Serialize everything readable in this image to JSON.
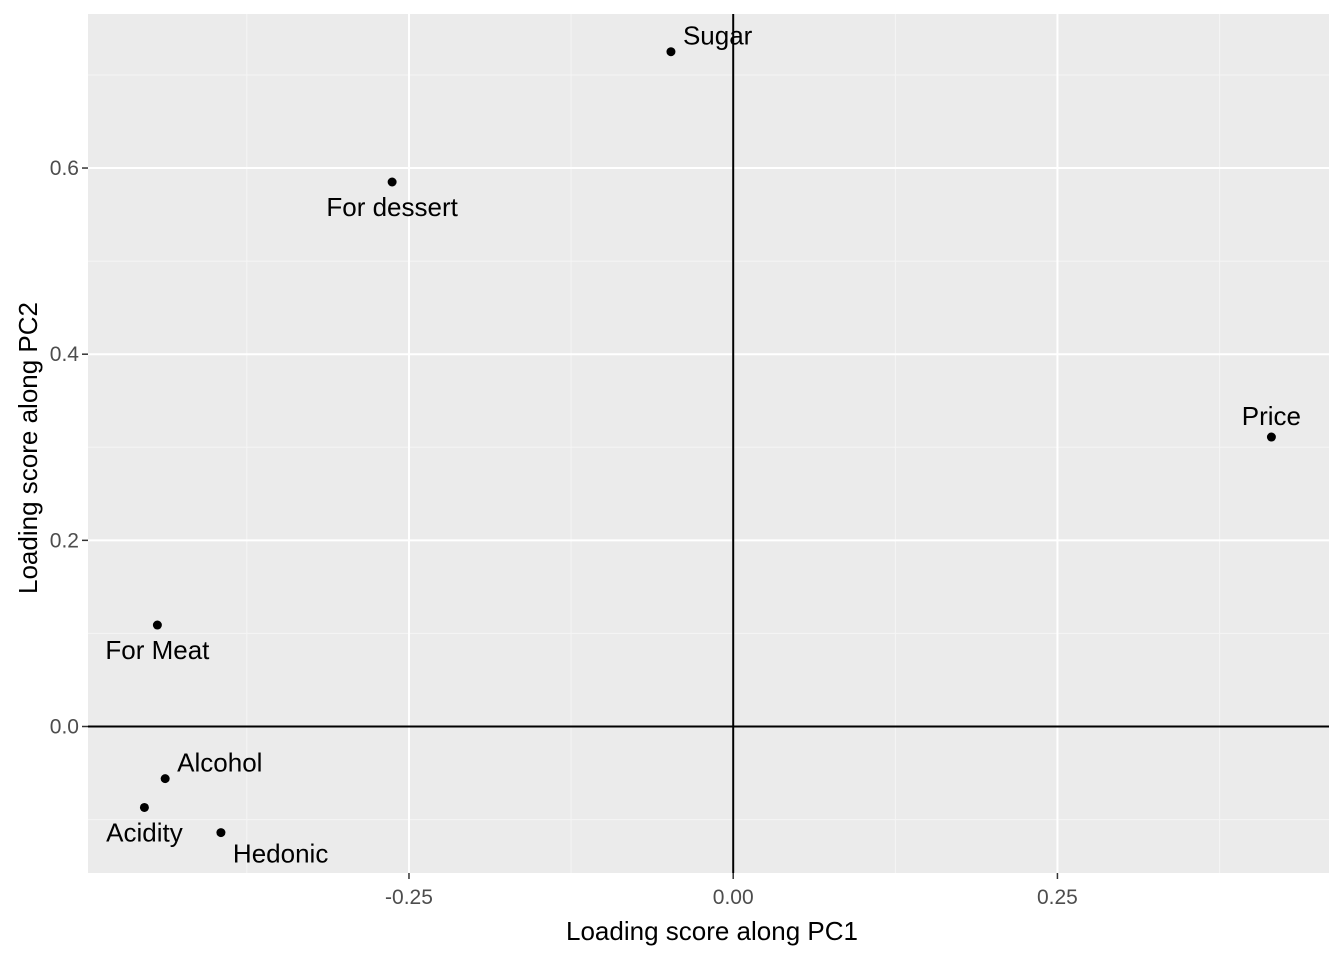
{
  "chart_data": {
    "type": "scatter",
    "title": "",
    "xlabel": "Loading score along PC1",
    "ylabel": "Loading score along PC2",
    "xlim": [
      -0.4975,
      0.4594
    ],
    "ylim": [
      -0.1574,
      0.7655
    ],
    "x_ticks": [
      -0.25,
      0.0,
      0.25
    ],
    "x_tick_labels": [
      "-0.25",
      "0.00",
      "0.25"
    ],
    "y_ticks": [
      0.0,
      0.2,
      0.4,
      0.6
    ],
    "y_tick_labels": [
      "0.0",
      "0.2",
      "0.4",
      "0.6"
    ],
    "x_minor_ticks": [
      -0.375,
      -0.125,
      0.125,
      0.375
    ],
    "y_minor_ticks": [
      -0.1,
      0.1,
      0.3,
      0.5,
      0.7
    ],
    "grid": true,
    "reference_lines": {
      "x": 0,
      "y": 0
    },
    "points": [
      {
        "label": "Sugar",
        "x": -0.048,
        "y": 0.725,
        "label_pos": "above-right"
      },
      {
        "label": "For dessert",
        "x": -0.263,
        "y": 0.585,
        "label_pos": "below"
      },
      {
        "label": "Price",
        "x": 0.415,
        "y": 0.311,
        "label_pos": "above"
      },
      {
        "label": "For Meat",
        "x": -0.444,
        "y": 0.109,
        "label_pos": "below"
      },
      {
        "label": "Alcohol",
        "x": -0.438,
        "y": -0.056,
        "label_pos": "above-right"
      },
      {
        "label": "Acidity",
        "x": -0.454,
        "y": -0.087,
        "label_pos": "below"
      },
      {
        "label": "Hedonic",
        "x": -0.395,
        "y": -0.114,
        "label_pos": "below-right"
      }
    ],
    "colors": {
      "panel_background": "#ebebeb",
      "grid_major": "#ffffff",
      "grid_minor": "#f5f5f5",
      "reference_line": "#000000",
      "point": "#000000"
    }
  }
}
